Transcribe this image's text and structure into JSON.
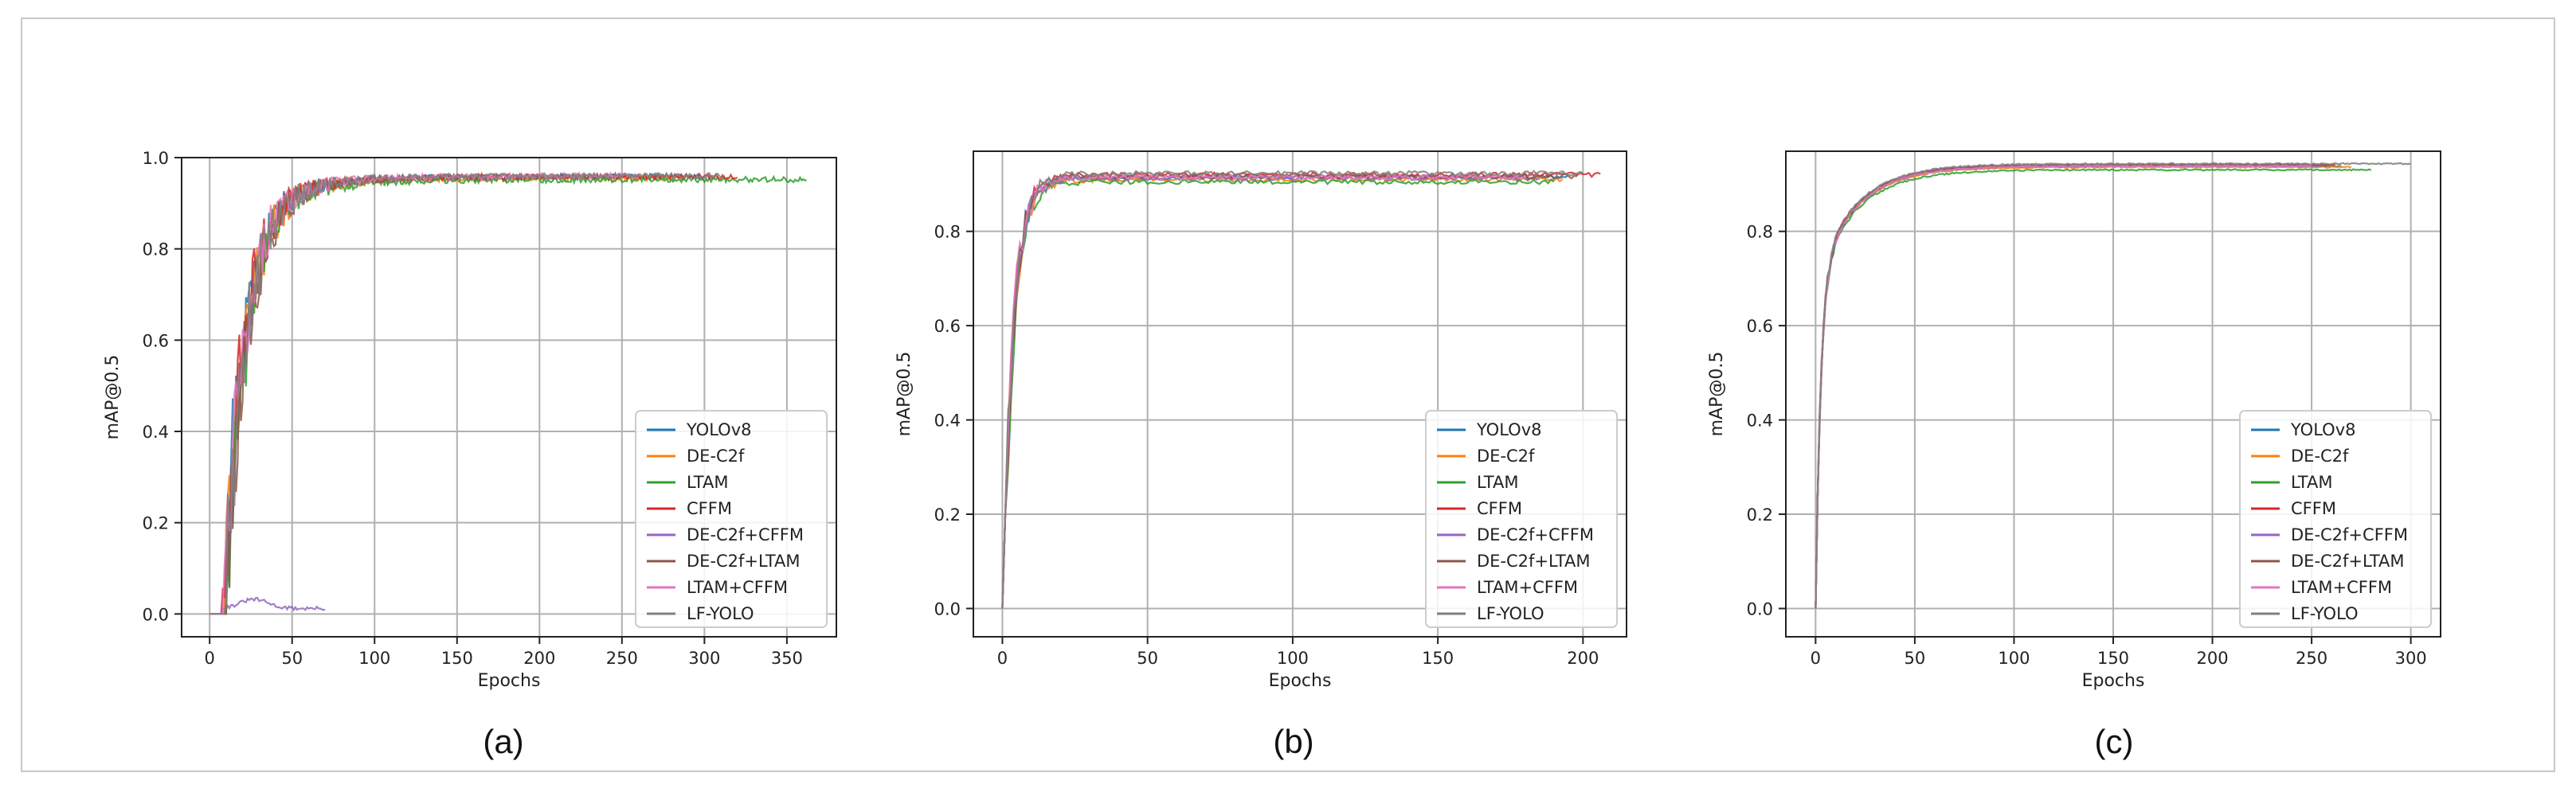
{
  "legend_entries": [
    "YOLOv8",
    "DE-C2f",
    "LTAM",
    "CFFM",
    "DE-C2f+CFFM",
    "DE-C2f+LTAM",
    "LTAM+CFFM",
    "LF-YOLO"
  ],
  "colors": {
    "YOLOv8": "#1f77b4",
    "DE-C2f": "#ff7f0e",
    "LTAM": "#2ca02c",
    "CFFM": "#d62728",
    "DE-C2f+CFFM": "#9467bd",
    "DE-C2f+LTAM": "#8c564b",
    "LTAM+CFFM": "#e377c2",
    "LF-YOLO": "#7f7f7f"
  },
  "chart_data": [
    {
      "type": "line",
      "panel_label": "(a)",
      "xlabel": "Epochs",
      "ylabel": "mAP@0.5",
      "xlim": [
        -17,
        380
      ],
      "ylim": [
        -0.05,
        1.0
      ],
      "xticks": [
        0,
        50,
        100,
        150,
        200,
        250,
        300,
        350
      ],
      "yticks": [
        0.0,
        0.2,
        0.4,
        0.6,
        0.8,
        1.0
      ],
      "ytick_labels": [
        "0.0",
        "0.2",
        "0.4",
        "0.6",
        "0.8",
        "1.0"
      ],
      "grid": true,
      "legend_position": "lower-right",
      "series": [
        {
          "name": "YOLOv8",
          "epochs": 300,
          "final": 0.965,
          "early": "noisy"
        },
        {
          "name": "DE-C2f",
          "epochs": 290,
          "final": 0.962,
          "early": "noisy"
        },
        {
          "name": "LTAM",
          "epochs": 362,
          "final": 0.958,
          "early": "noisy"
        },
        {
          "name": "CFFM",
          "epochs": 320,
          "final": 0.965,
          "early": "noisy"
        },
        {
          "name": "DE-C2f+CFFM",
          "epochs": 70,
          "final": 0.015,
          "early": "failed"
        },
        {
          "name": "DE-C2f+LTAM",
          "epochs": 250,
          "final": 0.965,
          "early": "noisy"
        },
        {
          "name": "LTAM+CFFM",
          "epochs": 260,
          "final": 0.966,
          "early": "noisy"
        },
        {
          "name": "LF-YOLO",
          "epochs": 310,
          "final": 0.966,
          "early": "noisy"
        }
      ]
    },
    {
      "type": "line",
      "panel_label": "(b)",
      "xlabel": "Epochs",
      "ylabel": "mAP@0.5",
      "xlim": [
        -10,
        215
      ],
      "ylim": [
        -0.06,
        0.97
      ],
      "xticks": [
        0,
        50,
        100,
        150,
        200
      ],
      "yticks": [
        0.0,
        0.2,
        0.4,
        0.6,
        0.8
      ],
      "ytick_labels": [
        "0.0",
        "0.2",
        "0.4",
        "0.6",
        "0.8"
      ],
      "grid": true,
      "legend_position": "lower-right",
      "series": [
        {
          "name": "YOLOv8",
          "epochs": 195,
          "final": 0.92,
          "early": "fast"
        },
        {
          "name": "DE-C2f",
          "epochs": 193,
          "final": 0.915,
          "early": "fast"
        },
        {
          "name": "LTAM",
          "epochs": 190,
          "final": 0.91,
          "early": "fast"
        },
        {
          "name": "CFFM",
          "epochs": 206,
          "final": 0.925,
          "early": "fast"
        },
        {
          "name": "DE-C2f+CFFM",
          "epochs": 185,
          "final": 0.918,
          "early": "fast"
        },
        {
          "name": "DE-C2f+LTAM",
          "epochs": 198,
          "final": 0.922,
          "early": "fast"
        },
        {
          "name": "LTAM+CFFM",
          "epochs": 180,
          "final": 0.92,
          "early": "fast"
        },
        {
          "name": "LF-YOLO",
          "epochs": 200,
          "final": 0.928,
          "early": "fast"
        }
      ]
    },
    {
      "type": "line",
      "panel_label": "(c)",
      "xlabel": "Epochs",
      "ylabel": "mAP@0.5",
      "xlim": [
        -15,
        315
      ],
      "ylim": [
        -0.06,
        0.97
      ],
      "xticks": [
        0,
        50,
        100,
        150,
        200,
        250,
        300
      ],
      "yticks": [
        0.0,
        0.2,
        0.4,
        0.6,
        0.8
      ],
      "ytick_labels": [
        "0.0",
        "0.2",
        "0.4",
        "0.6",
        "0.8"
      ],
      "grid": true,
      "legend_position": "lower-right",
      "series": [
        {
          "name": "YOLOv8",
          "epochs": 265,
          "final": 0.94,
          "early": "smooth"
        },
        {
          "name": "DE-C2f",
          "epochs": 270,
          "final": 0.938,
          "early": "smooth"
        },
        {
          "name": "LTAM",
          "epochs": 280,
          "final": 0.932,
          "early": "smooth"
        },
        {
          "name": "CFFM",
          "epochs": 262,
          "final": 0.943,
          "early": "smooth"
        },
        {
          "name": "DE-C2f+CFFM",
          "epochs": 255,
          "final": 0.94,
          "early": "smooth"
        },
        {
          "name": "DE-C2f+LTAM",
          "epochs": 258,
          "final": 0.942,
          "early": "smooth"
        },
        {
          "name": "LTAM+CFFM",
          "epochs": 250,
          "final": 0.94,
          "early": "smooth"
        },
        {
          "name": "LF-YOLO",
          "epochs": 300,
          "final": 0.945,
          "early": "smooth"
        }
      ]
    }
  ]
}
